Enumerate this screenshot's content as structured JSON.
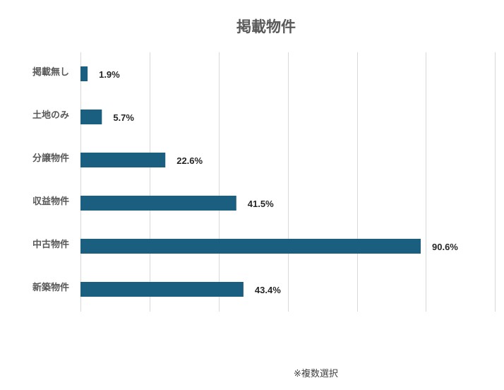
{
  "chart_data": {
    "type": "bar",
    "orientation": "horizontal",
    "title": "掲載物件",
    "categories": [
      "掲載無し",
      "土地のみ",
      "分譲物件",
      "収益物件",
      "中古物件",
      "新築物件"
    ],
    "values": [
      1.9,
      5.7,
      22.6,
      41.5,
      90.6,
      43.4
    ],
    "value_labels": [
      "1.9%",
      "5.7%",
      "22.6%",
      "41.5%",
      "90.6%",
      "43.4%"
    ],
    "unit": "%",
    "xlim": [
      0,
      100
    ],
    "grid": true,
    "bar_color": "#1a5e80",
    "note": "※複数選択"
  }
}
